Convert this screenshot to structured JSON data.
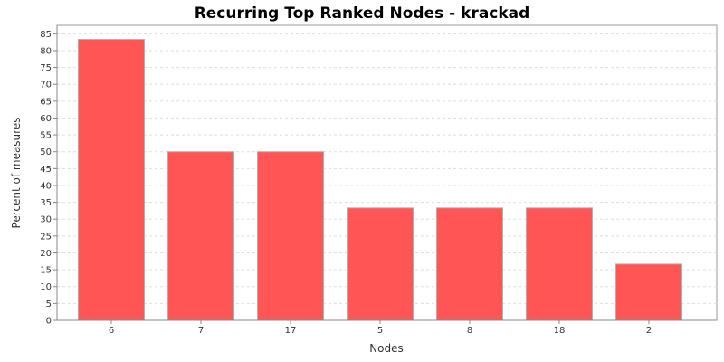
{
  "chart_data": {
    "type": "bar",
    "title": "Recurring Top Ranked Nodes - krackad",
    "xlabel": "Nodes",
    "ylabel": "Percent of measures",
    "categories": [
      "6",
      "7",
      "17",
      "5",
      "8",
      "18",
      "2"
    ],
    "values": [
      83.33,
      50,
      50,
      33.33,
      33.33,
      33.33,
      16.67
    ],
    "ylim": [
      0,
      87.5
    ],
    "yticks": [
      0,
      5,
      10,
      15,
      20,
      25,
      30,
      35,
      40,
      45,
      50,
      55,
      60,
      65,
      70,
      75,
      80,
      85
    ],
    "grid": true,
    "legend": "none",
    "colors": {
      "bar_fill": "#ff5555",
      "bar_stroke": "#b0b0b0",
      "plot_background": "#ffffff",
      "grid": "#dddddd",
      "axis": "#888888"
    }
  }
}
